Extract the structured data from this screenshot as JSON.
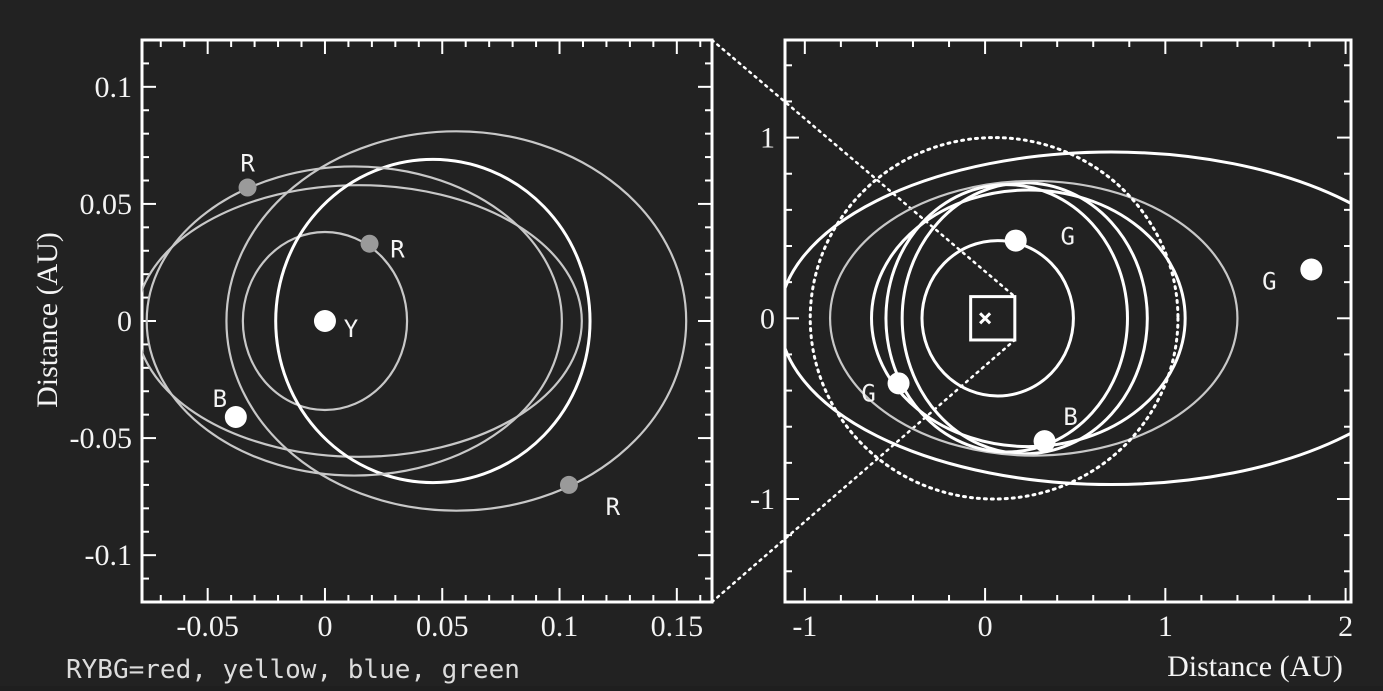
{
  "colors": {
    "background": "#222222",
    "axes": "#ffffff",
    "orbit_bright": "#ffffff",
    "orbit_dim": "#c8c8c8",
    "body_red": "#9a9a9a",
    "body_yellow": "#ffffff",
    "body_blue": "#ffffff",
    "body_green": "#ffffff"
  },
  "caption": "RYBG=red, yellow, blue, green",
  "chart_data": [
    {
      "type": "scatter",
      "panel": "left",
      "xlabel": "",
      "ylabel": "Distance (AU)",
      "xlim": [
        -0.078,
        0.165
      ],
      "ylim": [
        -0.12,
        0.12
      ],
      "xticks": [
        -0.05,
        0,
        0.05,
        0.1,
        0.15
      ],
      "xtick_labels": [
        "-0.05",
        "0",
        "0.05",
        "0.1",
        "0.15"
      ],
      "yticks": [
        -0.1,
        -0.05,
        0,
        0.05,
        0.1
      ],
      "ytick_labels": [
        "-0.1",
        "-0.05",
        "0",
        "0.05",
        "0.1"
      ],
      "orbits": [
        {
          "cx": 0,
          "cy": 0,
          "rx": 0.035,
          "ry": 0.038,
          "style": "dim"
        },
        {
          "cx": 0.0145,
          "cy": 0,
          "rx": 0.095,
          "ry": 0.058,
          "style": "dim"
        },
        {
          "cx": 0.046,
          "cy": 0,
          "rx": 0.067,
          "ry": 0.069,
          "style": "bright"
        },
        {
          "cx": 0.0125,
          "cy": 0,
          "rx": 0.0885,
          "ry": 0.066,
          "style": "dim"
        },
        {
          "cx": 0.056,
          "cy": 0,
          "rx": 0.098,
          "ry": 0.081,
          "style": "dim"
        }
      ],
      "points": [
        {
          "label": "Y",
          "x": 0,
          "y": 0,
          "kind": "yellow"
        },
        {
          "label": "R",
          "x": -0.033,
          "y": 0.057,
          "kind": "red"
        },
        {
          "label": "R",
          "x": 0.019,
          "y": 0.033,
          "kind": "red"
        },
        {
          "label": "R",
          "x": 0.104,
          "y": -0.07,
          "kind": "red"
        },
        {
          "label": "B",
          "x": -0.038,
          "y": -0.041,
          "kind": "blue"
        }
      ]
    },
    {
      "type": "scatter",
      "panel": "right",
      "xlabel": "Distance (AU)",
      "ylabel": "",
      "xlim": [
        -1.11,
        2.03
      ],
      "ylim": [
        -1.57,
        1.54
      ],
      "xticks": [
        -1,
        0,
        1,
        2
      ],
      "xtick_labels": [
        "-1",
        "0",
        "1",
        "2"
      ],
      "yticks": [
        -1,
        0,
        1
      ],
      "ytick_labels": [
        "-1",
        "0",
        "1"
      ],
      "orbits": [
        {
          "cx": 0.7,
          "cy": 0,
          "rx": 1.84,
          "ry": 0.92,
          "style": "bright"
        },
        {
          "cx": 0.22,
          "cy": 0,
          "rx": 0.68,
          "ry": 0.75,
          "style": "bright"
        },
        {
          "cx": 0.27,
          "cy": 0,
          "rx": 1.13,
          "ry": 0.76,
          "style": "dim"
        },
        {
          "cx": 0.24,
          "cy": 0,
          "rx": 0.87,
          "ry": 0.71,
          "style": "bright"
        },
        {
          "cx": 0.12,
          "cy": 0,
          "rx": 0.67,
          "ry": 0.74,
          "style": "bright"
        },
        {
          "cx": 0.07,
          "cy": 0,
          "rx": 0.42,
          "ry": 0.43,
          "style": "bright"
        },
        {
          "cx": 0.05,
          "cy": 0,
          "rx": 1.02,
          "ry": 1.0,
          "style": "dotted"
        }
      ],
      "points": [
        {
          "label": "G",
          "x": 0.17,
          "y": 0.43,
          "kind": "green"
        },
        {
          "label": "G",
          "x": 1.81,
          "y": 0.27,
          "kind": "green"
        },
        {
          "label": "G",
          "x": -0.48,
          "y": -0.36,
          "kind": "green"
        },
        {
          "label": "B",
          "x": 0.33,
          "y": -0.68,
          "kind": "blue"
        },
        {
          "label": "",
          "x": 0,
          "y": 0,
          "kind": "star"
        }
      ],
      "zoom_box": {
        "x0": -0.08,
        "x1": 0.165,
        "y0": -0.12,
        "y1": 0.12
      }
    }
  ]
}
